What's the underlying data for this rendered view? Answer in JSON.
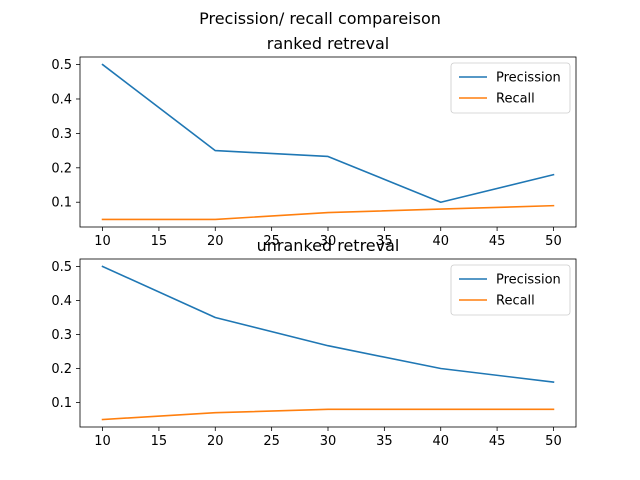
{
  "figure": {
    "suptitle": "Precission/ recall compareison"
  },
  "chart_data": [
    {
      "type": "line",
      "title": "ranked retreval",
      "xlabel": "",
      "ylabel": "",
      "x": [
        10,
        20,
        30,
        40,
        50
      ],
      "xlim": [
        8,
        52
      ],
      "ylim": [
        0.028,
        0.522
      ],
      "xticks": [
        10,
        15,
        20,
        25,
        30,
        35,
        40,
        45,
        50
      ],
      "yticks": [
        0.1,
        0.2,
        0.3,
        0.4,
        0.5
      ],
      "grid": false,
      "legend_position": "top-right",
      "series": [
        {
          "name": "Precission",
          "color": "#1f77b4",
          "values": [
            0.5,
            0.25,
            0.233,
            0.1,
            0.18
          ]
        },
        {
          "name": "Recall",
          "color": "#ff7f0e",
          "values": [
            0.05,
            0.05,
            0.07,
            0.08,
            0.09
          ]
        }
      ]
    },
    {
      "type": "line",
      "title": "unranked retreval",
      "xlabel": "",
      "ylabel": "",
      "x": [
        10,
        20,
        30,
        40,
        50
      ],
      "xlim": [
        8,
        52
      ],
      "ylim": [
        0.028,
        0.522
      ],
      "xticks": [
        10,
        15,
        20,
        25,
        30,
        35,
        40,
        45,
        50
      ],
      "yticks": [
        0.1,
        0.2,
        0.3,
        0.4,
        0.5
      ],
      "grid": false,
      "legend_position": "top-right",
      "series": [
        {
          "name": "Precission",
          "color": "#1f77b4",
          "values": [
            0.5,
            0.35,
            0.267,
            0.2,
            0.16
          ]
        },
        {
          "name": "Recall",
          "color": "#ff7f0e",
          "values": [
            0.05,
            0.07,
            0.08,
            0.08,
            0.08
          ]
        }
      ]
    }
  ]
}
